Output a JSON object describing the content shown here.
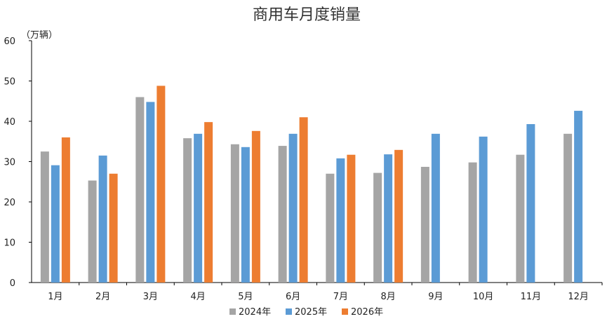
{
  "chart_data": {
    "type": "bar",
    "title": "商用车月度销量",
    "ylabel": "（万辆）",
    "xlabel": "",
    "ylim": [
      0,
      60
    ],
    "yticks": [
      0,
      10,
      20,
      30,
      40,
      50,
      60
    ],
    "categories": [
      "1月",
      "2月",
      "3月",
      "4月",
      "5月",
      "6月",
      "7月",
      "8月",
      "9月",
      "10月",
      "11月",
      "12月"
    ],
    "series": [
      {
        "name": "2024年",
        "color": "#a5a5a5",
        "values": [
          32.5,
          25.3,
          46.0,
          35.8,
          34.3,
          33.9,
          27.0,
          27.2,
          28.7,
          29.8,
          31.7,
          36.9
        ]
      },
      {
        "name": "2025年",
        "color": "#5b9bd5",
        "values": [
          29.1,
          31.5,
          44.8,
          36.9,
          33.6,
          36.9,
          30.8,
          31.8,
          36.9,
          36.2,
          39.3,
          42.6
        ]
      },
      {
        "name": "2026年",
        "color": "#ed7d31",
        "values": [
          36.0,
          27.0,
          48.8,
          39.8,
          37.6,
          41.0,
          31.7,
          32.9,
          null,
          null,
          null,
          null
        ]
      }
    ],
    "legend_position": "bottom",
    "grid": false
  }
}
